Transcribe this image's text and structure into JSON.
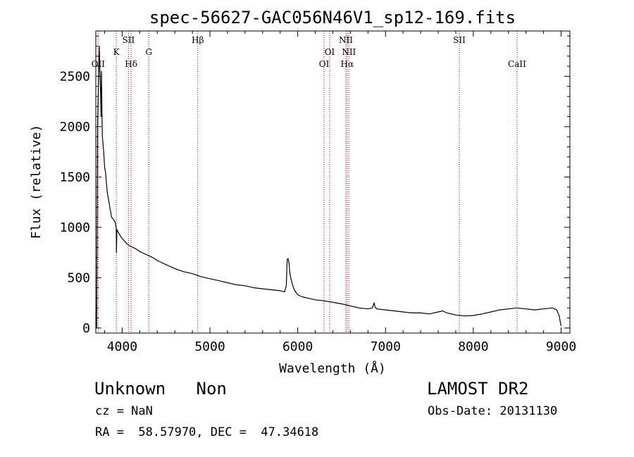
{
  "chart_data": {
    "type": "line",
    "title": "spec-56627-GAC056N46V1_sp12-169.fits",
    "xlabel": "Wavelength (Å)",
    "ylabel": "Flux (relative)",
    "xlim": [
      3700,
      9100
    ],
    "ylim": [
      -50,
      2950
    ],
    "xticks": [
      4000,
      5000,
      6000,
      7000,
      8000,
      9000
    ],
    "yticks": [
      0,
      500,
      1000,
      1500,
      2000,
      2500
    ],
    "grid": false,
    "series": [
      {
        "color": "#000000",
        "x": [
          3710,
          3720,
          3730,
          3740,
          3745,
          3750,
          3755,
          3760,
          3765,
          3770,
          3775,
          3780,
          3790,
          3800,
          3810,
          3820,
          3830,
          3840,
          3850,
          3860,
          3870,
          3880,
          3900,
          3920,
          3933,
          3935,
          3940,
          3950,
          3970,
          3990,
          4010,
          4030,
          4050,
          4080,
          4100,
          4150,
          4200,
          4250,
          4300,
          4350,
          4400,
          4500,
          4600,
          4700,
          4800,
          4900,
          5000,
          5100,
          5200,
          5300,
          5400,
          5500,
          5600,
          5700,
          5800,
          5850,
          5870,
          5880,
          5890,
          5900,
          5910,
          5920,
          5940,
          5960,
          6000,
          6050,
          6100,
          6200,
          6300,
          6400,
          6500,
          6600,
          6700,
          6800,
          6850,
          6870,
          6880,
          6900,
          7000,
          7100,
          7200,
          7300,
          7400,
          7500,
          7600,
          7650,
          7700,
          7800,
          7900,
          8000,
          8100,
          8200,
          8300,
          8400,
          8500,
          8600,
          8700,
          8800,
          8900,
          8950,
          8980,
          8990,
          9000
        ],
        "y": [
          0,
          2000,
          2400,
          2800,
          2600,
          2500,
          2300,
          2100,
          2550,
          2150,
          1900,
          1850,
          1750,
          1600,
          1550,
          1450,
          1350,
          1300,
          1250,
          1200,
          1150,
          1100,
          1080,
          1050,
          1000,
          750,
          980,
          960,
          930,
          900,
          880,
          860,
          840,
          820,
          810,
          790,
          760,
          740,
          720,
          700,
          670,
          630,
          590,
          560,
          540,
          510,
          490,
          470,
          450,
          430,
          420,
          400,
          390,
          380,
          370,
          360,
          420,
          680,
          690,
          650,
          550,
          500,
          430,
          380,
          330,
          310,
          300,
          280,
          270,
          255,
          240,
          220,
          200,
          190,
          200,
          250,
          210,
          190,
          180,
          170,
          160,
          150,
          150,
          140,
          160,
          170,
          150,
          130,
          120,
          125,
          140,
          160,
          180,
          190,
          200,
          190,
          180,
          190,
          200,
          180,
          120,
          60,
          20
        ]
      }
    ],
    "lines": [
      {
        "x": 3727,
        "label": "OII",
        "row": 3
      },
      {
        "x": 3934,
        "label": "K",
        "row": 2
      },
      {
        "x": 4072,
        "label": "SII",
        "row": 1
      },
      {
        "x": 4102,
        "label": "Hδ",
        "row": 3
      },
      {
        "x": 4304,
        "label": "G",
        "row": 2
      },
      {
        "x": 4861,
        "label": "Hβ",
        "row": 1
      },
      {
        "x": 6300,
        "label": "OI",
        "row": 3
      },
      {
        "x": 6364,
        "label": "OI",
        "row": 2
      },
      {
        "x": 6548,
        "label": "NII",
        "row": 1
      },
      {
        "x": 6563,
        "label": "Hα",
        "row": 3
      },
      {
        "x": 6583,
        "label": "NII",
        "row": 2
      },
      {
        "x": 7840,
        "label": "SII",
        "row": 1
      },
      {
        "x": 8498,
        "label": "CaII",
        "row": 3
      }
    ]
  },
  "info": {
    "class_text": "Unknown   Non",
    "survey": "LAMOST DR2",
    "cz": "cz = NaN",
    "obs_date": "Obs-Date: 20131130",
    "radec": "RA =  58.57970, DEC =  47.34618"
  }
}
